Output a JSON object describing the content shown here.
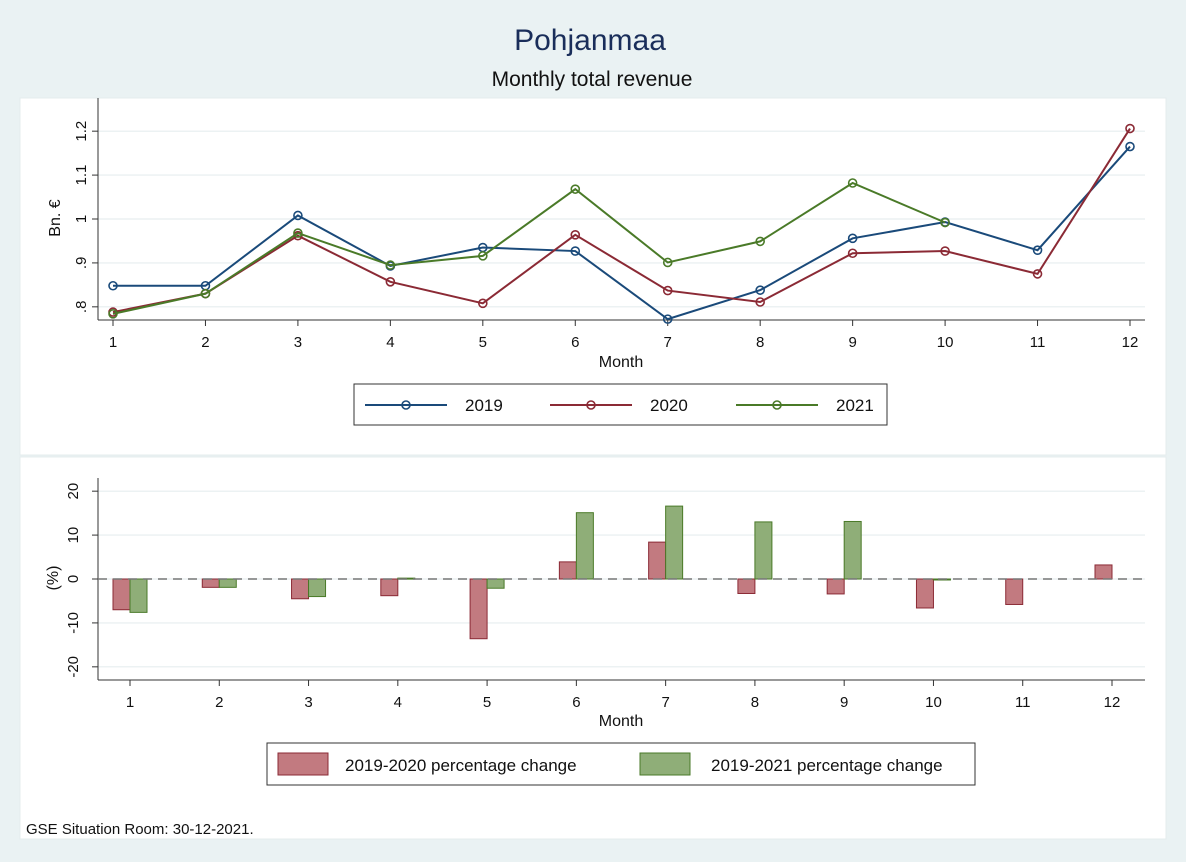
{
  "title": "Pohjanmaa",
  "subtitle": "Monthly total revenue",
  "footer": "GSE Situation Room: 30-12-2021.",
  "colors": {
    "background": "#eaf2f3",
    "panel": "#ffffff",
    "title": "#1a2e5a",
    "s2019": "#1a4a7a",
    "s2020": "#8b2a35",
    "s2021": "#4a7a28",
    "bar2020_fill": "#c27a80",
    "bar2020_stroke": "#8b2a35",
    "bar2021_fill": "#8fae78",
    "bar2021_stroke": "#4a7a28"
  },
  "chart_data": [
    {
      "type": "line",
      "xlabel": "Month",
      "ylabel": "Bn. €",
      "x": [
        1,
        2,
        3,
        4,
        5,
        6,
        7,
        8,
        9,
        10,
        11,
        12
      ],
      "xticks": [
        "1",
        "2",
        "3",
        "4",
        "5",
        "6",
        "7",
        "8",
        "9",
        "10",
        "11",
        "12"
      ],
      "ylim": [
        0.77,
        1.23
      ],
      "yticks": [
        0.8,
        0.9,
        1.0,
        1.1,
        1.2
      ],
      "yticklabels": [
        ".8",
        ".9",
        "1",
        "1.1",
        "1.2"
      ],
      "grid": true,
      "legend": "bottom",
      "series": [
        {
          "name": "2019",
          "color": "#1a4a7a",
          "values": [
            0.848,
            0.848,
            1.008,
            0.893,
            0.935,
            0.927,
            0.772,
            0.838,
            0.956,
            0.993,
            0.929,
            1.165
          ]
        },
        {
          "name": "2020",
          "color": "#8b2a35",
          "values": [
            0.788,
            0.83,
            0.962,
            0.857,
            0.808,
            0.964,
            0.837,
            0.811,
            0.922,
            0.927,
            0.875,
            1.206
          ]
        },
        {
          "name": "2021",
          "color": "#4a7a28",
          "values": [
            0.784,
            0.83,
            0.968,
            0.895,
            0.916,
            1.068,
            0.901,
            0.949,
            1.082,
            0.992,
            null,
            null
          ]
        }
      ]
    },
    {
      "type": "bar",
      "xlabel": "Month",
      "ylabel": "(%)",
      "categories": [
        "1",
        "2",
        "3",
        "4",
        "5",
        "6",
        "7",
        "8",
        "9",
        "10",
        "11",
        "12"
      ],
      "ylim": [
        -23,
        23
      ],
      "yticks": [
        -20,
        -10,
        0,
        10,
        20
      ],
      "yticklabels": [
        "-20",
        "-10",
        "0",
        "10",
        "20"
      ],
      "grid": true,
      "legend": "bottom",
      "reference_line": 0,
      "series": [
        {
          "name": "2019-2020 percentage change",
          "fill": "#c27a80",
          "stroke": "#8b2a35",
          "values": [
            -7.0,
            -1.9,
            -4.5,
            -3.8,
            -13.6,
            3.9,
            8.4,
            -3.3,
            -3.4,
            -6.6,
            -5.8,
            3.2
          ]
        },
        {
          "name": "2019-2021 percentage change",
          "fill": "#8fae78",
          "stroke": "#4a7a28",
          "values": [
            -7.6,
            -1.9,
            -4.0,
            0.2,
            -2.1,
            15.1,
            16.6,
            13.0,
            13.1,
            -0.1,
            null,
            null
          ]
        }
      ]
    }
  ]
}
